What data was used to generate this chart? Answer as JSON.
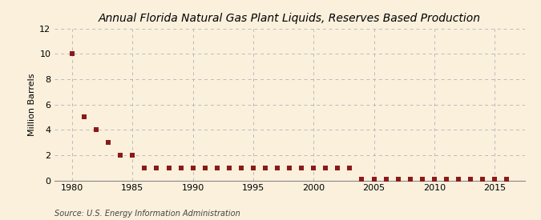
{
  "title": "Annual Florida Natural Gas Plant Liquids, Reserves Based Production",
  "ylabel": "Million Barrels",
  "source": "Source: U.S. Energy Information Administration",
  "background_color": "#faf0dc",
  "plot_bg_color": "#faf0dc",
  "marker_color": "#8b1a1a",
  "grid_color": "#bbbbbb",
  "years": [
    1980,
    1981,
    1982,
    1983,
    1984,
    1985,
    1986,
    1987,
    1988,
    1989,
    1990,
    1991,
    1992,
    1993,
    1994,
    1995,
    1996,
    1997,
    1998,
    1999,
    2000,
    2001,
    2002,
    2003,
    2004,
    2005,
    2006,
    2007,
    2008,
    2009,
    2010,
    2011,
    2012,
    2013,
    2014,
    2015,
    2016
  ],
  "values": [
    10.0,
    5.0,
    4.0,
    3.0,
    2.0,
    2.0,
    1.0,
    1.0,
    1.0,
    1.0,
    1.0,
    1.0,
    1.0,
    1.0,
    1.0,
    1.0,
    1.0,
    1.0,
    1.0,
    1.0,
    1.0,
    1.0,
    1.0,
    1.0,
    0.07,
    0.07,
    0.07,
    0.07,
    0.07,
    0.07,
    0.07,
    0.07,
    0.07,
    0.07,
    0.07,
    0.07,
    0.07
  ],
  "xlim": [
    1978.5,
    2017.5
  ],
  "ylim": [
    0,
    12
  ],
  "yticks": [
    0,
    2,
    4,
    6,
    8,
    10,
    12
  ],
  "xticks": [
    1980,
    1985,
    1990,
    1995,
    2000,
    2005,
    2010,
    2015
  ],
  "title_fontsize": 10,
  "ylabel_fontsize": 8,
  "tick_fontsize": 8,
  "source_fontsize": 7,
  "marker_size": 16
}
